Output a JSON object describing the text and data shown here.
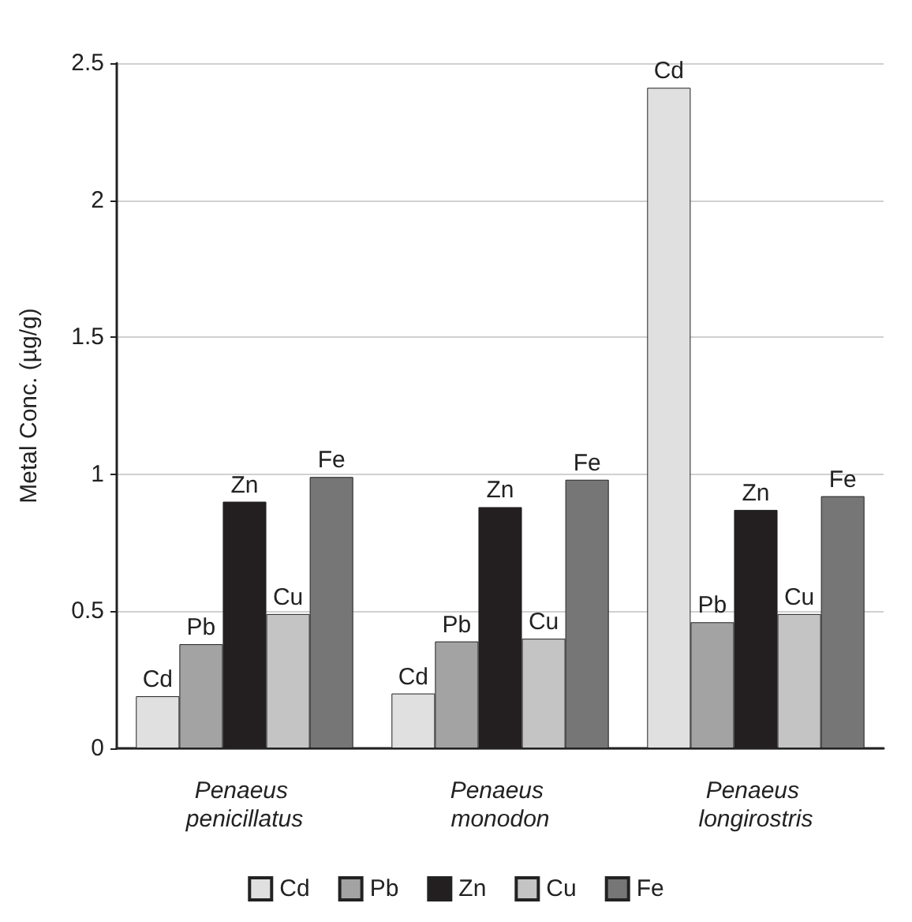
{
  "chart_data": {
    "type": "bar",
    "ylabel": "Metal Conc. (µg/g)",
    "categories": [
      "Penaeus penicillatus",
      "Penaeus monodon",
      "Penaeus longirostris"
    ],
    "series": [
      {
        "name": "Cd",
        "color": "#e0e0e0",
        "values": [
          0.19,
          0.2,
          2.41
        ]
      },
      {
        "name": "Pb",
        "color": "#a3a3a3",
        "values": [
          0.38,
          0.39,
          0.46
        ]
      },
      {
        "name": "Zn",
        "color": "#231f20",
        "values": [
          0.9,
          0.88,
          0.87
        ]
      },
      {
        "name": "Cu",
        "color": "#c4c4c4",
        "values": [
          0.49,
          0.4,
          0.49
        ]
      },
      {
        "name": "Fe",
        "color": "#767676",
        "values": [
          0.99,
          0.98,
          0.92
        ]
      }
    ],
    "ylim": [
      0,
      2.5
    ],
    "yticks": [
      0,
      0.5,
      1,
      1.5,
      2,
      2.5
    ],
    "grid": "y",
    "legend": "bottom"
  }
}
